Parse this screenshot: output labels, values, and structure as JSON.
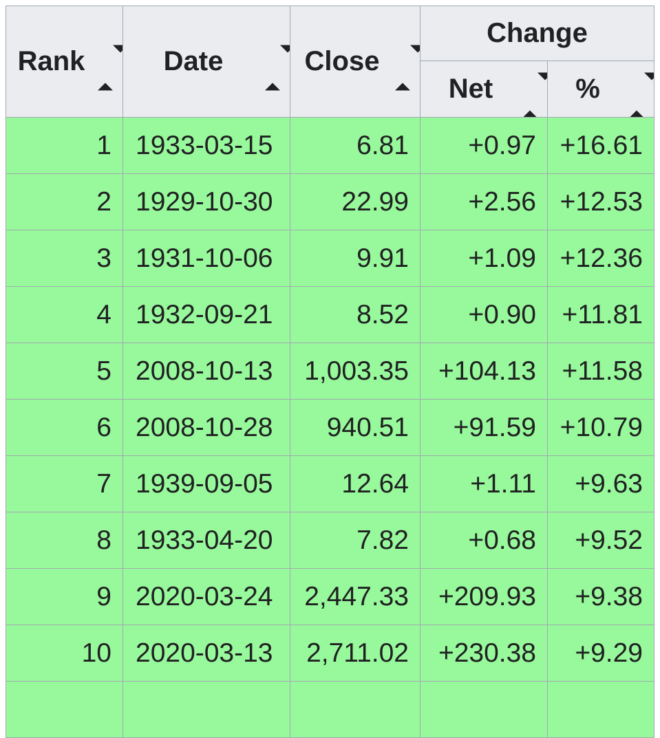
{
  "colors": {
    "header_bg": "#eaecf0",
    "row_bg": "#97f99b",
    "border": "#a2a9b1",
    "text": "#202122"
  },
  "table": {
    "header": {
      "rank": "Rank",
      "date": "Date",
      "close": "Close",
      "change_group": "Change",
      "net": "Net",
      "percent": "%"
    },
    "rows": [
      {
        "rank": "1",
        "date": "1933-03-15",
        "close": "6.81",
        "net": "+0.97",
        "percent": "+16.61"
      },
      {
        "rank": "2",
        "date": "1929-10-30",
        "close": "22.99",
        "net": "+2.56",
        "percent": "+12.53"
      },
      {
        "rank": "3",
        "date": "1931-10-06",
        "close": "9.91",
        "net": "+1.09",
        "percent": "+12.36"
      },
      {
        "rank": "4",
        "date": "1932-09-21",
        "close": "8.52",
        "net": "+0.90",
        "percent": "+11.81"
      },
      {
        "rank": "5",
        "date": "2008-10-13",
        "close": "1,003.35",
        "net": "+104.13",
        "percent": "+11.58"
      },
      {
        "rank": "6",
        "date": "2008-10-28",
        "close": "940.51",
        "net": "+91.59",
        "percent": "+10.79"
      },
      {
        "rank": "7",
        "date": "1939-09-05",
        "close": "12.64",
        "net": "+1.11",
        "percent": "+9.63"
      },
      {
        "rank": "8",
        "date": "1933-04-20",
        "close": "7.82",
        "net": "+0.68",
        "percent": "+9.52"
      },
      {
        "rank": "9",
        "date": "2020-03-24",
        "close": "2,447.33",
        "net": "+209.93",
        "percent": "+9.38"
      },
      {
        "rank": "10",
        "date": "2020-03-13",
        "close": "2,711.02",
        "net": "+230.38",
        "percent": "+9.29"
      }
    ]
  },
  "chart_data": {
    "type": "table",
    "title": "",
    "columns": [
      "Rank",
      "Date",
      "Close",
      "Change Net",
      "Change %"
    ],
    "column_groups": [
      {
        "label": "Change",
        "spans": [
          "Net",
          "%"
        ]
      }
    ],
    "rows": [
      [
        1,
        "1933-03-15",
        6.81,
        0.97,
        16.61
      ],
      [
        2,
        "1929-10-30",
        22.99,
        2.56,
        12.53
      ],
      [
        3,
        "1931-10-06",
        9.91,
        1.09,
        12.36
      ],
      [
        4,
        "1932-09-21",
        8.52,
        0.9,
        11.81
      ],
      [
        5,
        "2008-10-13",
        1003.35,
        104.13,
        11.58
      ],
      [
        6,
        "2008-10-28",
        940.51,
        91.59,
        10.79
      ],
      [
        7,
        "1939-09-05",
        12.64,
        1.11,
        9.63
      ],
      [
        8,
        "1933-04-20",
        7.82,
        0.68,
        9.52
      ],
      [
        9,
        "2020-03-24",
        2447.33,
        209.93,
        9.38
      ],
      [
        10,
        "2020-03-13",
        2711.02,
        230.38,
        9.29
      ]
    ],
    "layout_hints": {
      "sortable_columns": [
        "Rank",
        "Date",
        "Close",
        "Net",
        "%"
      ],
      "row_background": "green",
      "values_sign": "positive gains"
    }
  }
}
